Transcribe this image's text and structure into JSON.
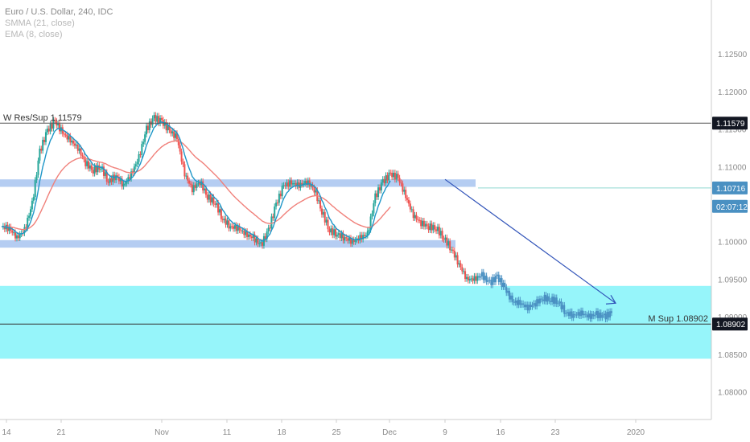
{
  "legend": {
    "symbol": "Euro / U.S. Dollar, 240, IDC",
    "smma": "SMMA (21, close)",
    "ema": "EMA (8, close)"
  },
  "chart_data": {
    "type": "candlestick",
    "y_ticks": [
      "1.12500",
      "1.12000",
      "1.11500",
      "1.11000",
      "1.10500",
      "1.10000",
      "1.09500",
      "1.09000",
      "1.08500",
      "1.08000"
    ],
    "y_tick_values": [
      1.125,
      1.12,
      1.115,
      1.11,
      1.105,
      1.1,
      1.095,
      1.09,
      1.085,
      1.08
    ],
    "ylim": [
      1.0763,
      1.1322
    ],
    "x_ticks": [
      "14",
      "21",
      "Nov",
      "11",
      "18",
      "25",
      "Dec",
      "9",
      "16",
      "23",
      "2020"
    ],
    "price_tags": [
      {
        "text": "1.11579",
        "value": 1.11579,
        "bg": "#131722",
        "color": "#ffffff"
      },
      {
        "text": "1.10716",
        "value": 1.10716,
        "bg": "#4a90c2",
        "color": "#ffffff"
      },
      {
        "text": "02:07:12",
        "value": 1.1047,
        "bg": "#4a90c2",
        "color": "#ffffff"
      },
      {
        "text": "1.08902",
        "value": 1.08902,
        "bg": "#131722",
        "color": "#ffffff"
      }
    ],
    "levels": [
      {
        "label": "W Res/Sup 1.11579",
        "value": 1.11579,
        "label_side": "left"
      },
      {
        "label": "M Sup 1.08902",
        "value": 1.08902,
        "label_side": "right"
      }
    ],
    "zones": [
      {
        "name": "upper band",
        "from": 1.1073,
        "to": 1.1083,
        "color": "#b5cdf2"
      },
      {
        "name": "lower band",
        "from": 1.0992,
        "to": 1.1002,
        "color": "#b5cdf2"
      },
      {
        "name": "monthly zone",
        "from": 1.0844,
        "to": 1.0941,
        "color": "#96f5fa"
      }
    ],
    "projection": {
      "from": 1.1083,
      "to": 1.0918
    },
    "price_path": [
      1.102,
      1.1018,
      1.1005,
      1.1015,
      1.105,
      1.112,
      1.1148,
      1.116,
      1.1145,
      1.1135,
      1.1125,
      1.1105,
      1.1095,
      1.11,
      1.108,
      1.1088,
      1.1075,
      1.109,
      1.1112,
      1.115,
      1.1165,
      1.116,
      1.1148,
      1.1138,
      1.109,
      1.107,
      1.108,
      1.106,
      1.1052,
      1.103,
      1.102,
      1.1018,
      1.101,
      1.1005,
      1.0995,
      1.1015,
      1.105,
      1.1075,
      1.1078,
      1.1075,
      1.108,
      1.107,
      1.104,
      1.1015,
      1.101,
      1.1005,
      1.1,
      1.1005,
      1.101,
      1.106,
      1.108,
      1.109,
      1.1085,
      1.106,
      1.1035,
      1.1025,
      1.102,
      1.1018,
      1.1005,
      1.099,
      1.097,
      1.095,
      1.095,
      1.0955,
      1.0945,
      1.0953,
      1.0938,
      1.092,
      1.0918,
      1.0912,
      1.0918,
      1.0925,
      1.0923,
      1.092,
      1.0905,
      1.0902,
      1.0905,
      1.09,
      1.0903,
      1.09,
      1.0905
    ],
    "series": [
      {
        "name": "SMMA (21, close)",
        "color": "#f0807a"
      },
      {
        "name": "EMA (8, close)",
        "color": "#1e96c8"
      }
    ]
  }
}
